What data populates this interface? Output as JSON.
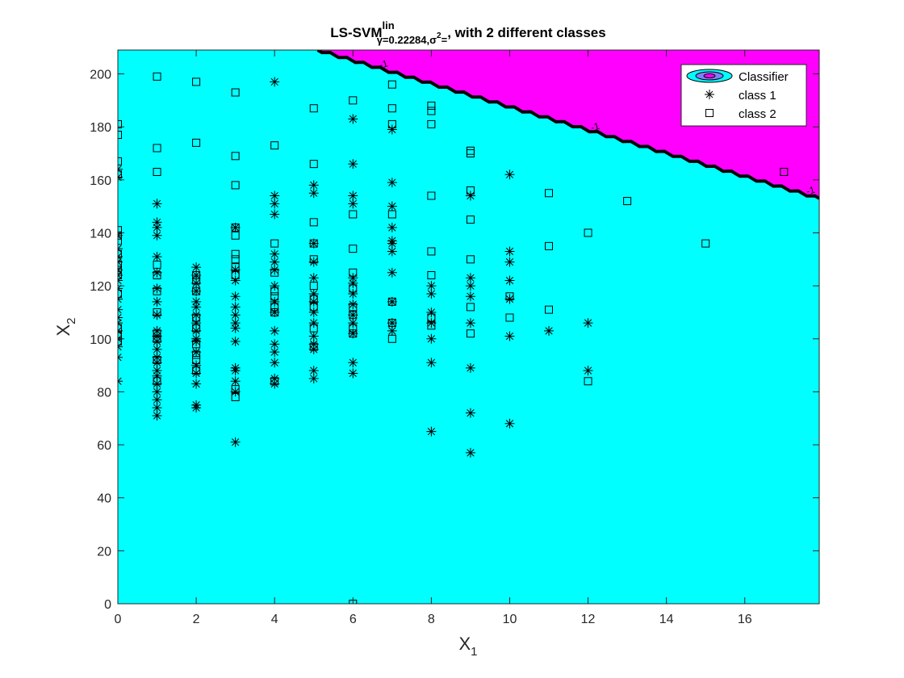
{
  "chart_data": {
    "type": "scatter",
    "title_main": "LS-SVM",
    "title_sup": "lin",
    "title_sub": "γ=0.22284,σ",
    "title_sub_sup": "2",
    "title_sub_tail": "=",
    "title_tail": ", with 2 different classes",
    "xlabel": "X",
    "xlabel_sub": "1",
    "ylabel": "X",
    "ylabel_sub": "2",
    "xlim": [
      0,
      17.9
    ],
    "ylim": [
      0,
      209
    ],
    "xticks": [
      0,
      2,
      4,
      6,
      8,
      10,
      12,
      14,
      16
    ],
    "yticks": [
      0,
      20,
      40,
      60,
      80,
      100,
      120,
      140,
      160,
      180,
      200
    ],
    "grid": false,
    "legend_placement": "top-right",
    "background_color": "#00ffff",
    "region_color": "#ff00ff",
    "boundary_color": "#000000",
    "boundary": {
      "x": [
        5.1,
        17.9
      ],
      "y": [
        209,
        153
      ],
      "label": "-1",
      "label_x": [
        6.8,
        12.2,
        17.7
      ]
    },
    "legend": [
      {
        "name": "Classifier",
        "marker": "contour"
      },
      {
        "name": "class 1",
        "marker": "star"
      },
      {
        "name": "class 2",
        "marker": "square"
      }
    ],
    "series": [
      {
        "name": "class 1",
        "marker": "star",
        "points": [
          [
            0,
            84
          ],
          [
            0,
            93
          ],
          [
            0,
            97
          ],
          [
            0,
            100
          ],
          [
            0,
            103
          ],
          [
            0,
            106
          ],
          [
            0,
            108
          ],
          [
            0,
            111
          ],
          [
            0,
            115
          ],
          [
            0,
            119
          ],
          [
            0,
            122
          ],
          [
            0,
            124
          ],
          [
            0,
            126
          ],
          [
            0,
            129
          ],
          [
            0,
            131
          ],
          [
            0,
            134
          ],
          [
            0,
            139
          ],
          [
            0,
            161
          ],
          [
            0,
            164
          ],
          [
            1,
            71
          ],
          [
            1,
            74
          ],
          [
            1,
            77
          ],
          [
            1,
            80
          ],
          [
            1,
            83
          ],
          [
            1,
            86
          ],
          [
            1,
            88
          ],
          [
            1,
            91
          ],
          [
            1,
            93
          ],
          [
            1,
            96
          ],
          [
            1,
            99
          ],
          [
            1,
            101
          ],
          [
            1,
            103
          ],
          [
            1,
            109
          ],
          [
            1,
            114
          ],
          [
            1,
            119
          ],
          [
            1,
            125
          ],
          [
            1,
            131
          ],
          [
            1,
            139
          ],
          [
            1,
            142
          ],
          [
            1,
            144
          ],
          [
            1,
            151
          ],
          [
            2,
            74
          ],
          [
            2,
            75
          ],
          [
            2,
            83
          ],
          [
            2,
            87
          ],
          [
            2,
            90
          ],
          [
            2,
            95
          ],
          [
            2,
            99
          ],
          [
            2,
            100
          ],
          [
            2,
            103
          ],
          [
            2,
            106
          ],
          [
            2,
            109
          ],
          [
            2,
            112
          ],
          [
            2,
            114
          ],
          [
            2,
            118
          ],
          [
            2,
            121
          ],
          [
            2,
            124
          ],
          [
            2,
            127
          ],
          [
            3,
            61
          ],
          [
            3,
            80
          ],
          [
            3,
            84
          ],
          [
            3,
            88
          ],
          [
            3,
            89
          ],
          [
            3,
            99
          ],
          [
            3,
            104
          ],
          [
            3,
            106
          ],
          [
            3,
            109
          ],
          [
            3,
            112
          ],
          [
            3,
            116
          ],
          [
            3,
            122
          ],
          [
            3,
            126
          ],
          [
            3,
            142
          ],
          [
            4,
            83
          ],
          [
            4,
            85
          ],
          [
            4,
            91
          ],
          [
            4,
            95
          ],
          [
            4,
            98
          ],
          [
            4,
            103
          ],
          [
            4,
            110
          ],
          [
            4,
            114
          ],
          [
            4,
            120
          ],
          [
            4,
            126
          ],
          [
            4,
            129
          ],
          [
            4,
            132
          ],
          [
            4,
            147
          ],
          [
            4,
            151
          ],
          [
            4,
            154
          ],
          [
            4,
            197
          ],
          [
            5,
            85
          ],
          [
            5,
            88
          ],
          [
            5,
            96
          ],
          [
            5,
            98
          ],
          [
            5,
            101
          ],
          [
            5,
            106
          ],
          [
            5,
            110
          ],
          [
            5,
            114
          ],
          [
            5,
            117
          ],
          [
            5,
            123
          ],
          [
            5,
            129
          ],
          [
            5,
            136
          ],
          [
            5,
            155
          ],
          [
            5,
            158
          ],
          [
            6,
            87
          ],
          [
            6,
            91
          ],
          [
            6,
            102
          ],
          [
            6,
            106
          ],
          [
            6,
            109
          ],
          [
            6,
            113
          ],
          [
            6,
            117
          ],
          [
            6,
            121
          ],
          [
            6,
            123
          ],
          [
            6,
            151
          ],
          [
            6,
            154
          ],
          [
            6,
            166
          ],
          [
            6,
            183
          ],
          [
            7,
            103
          ],
          [
            7,
            106
          ],
          [
            7,
            114
          ],
          [
            7,
            125
          ],
          [
            7,
            133
          ],
          [
            7,
            136
          ],
          [
            7,
            137
          ],
          [
            7,
            142
          ],
          [
            7,
            150
          ],
          [
            7,
            159
          ],
          [
            7,
            179
          ],
          [
            8,
            65
          ],
          [
            8,
            91
          ],
          [
            8,
            100
          ],
          [
            8,
            106
          ],
          [
            8,
            110
          ],
          [
            8,
            117
          ],
          [
            8,
            120
          ],
          [
            9,
            57
          ],
          [
            9,
            72
          ],
          [
            9,
            89
          ],
          [
            9,
            106
          ],
          [
            9,
            116
          ],
          [
            9,
            120
          ],
          [
            9,
            123
          ],
          [
            9,
            154
          ],
          [
            10,
            68
          ],
          [
            10,
            101
          ],
          [
            10,
            115
          ],
          [
            10,
            122
          ],
          [
            10,
            129
          ],
          [
            10,
            133
          ],
          [
            10,
            162
          ],
          [
            11,
            103
          ],
          [
            12,
            88
          ],
          [
            12,
            106
          ]
        ]
      },
      {
        "name": "class 2",
        "marker": "square",
        "points": [
          [
            0,
            99
          ],
          [
            0,
            101
          ],
          [
            0,
            104
          ],
          [
            0,
            117
          ],
          [
            0,
            124
          ],
          [
            0,
            126
          ],
          [
            0,
            128
          ],
          [
            0,
            132
          ],
          [
            0,
            137
          ],
          [
            0,
            139
          ],
          [
            0,
            141
          ],
          [
            0,
            162
          ],
          [
            0,
            167
          ],
          [
            0,
            177
          ],
          [
            0,
            181
          ],
          [
            1,
            84
          ],
          [
            1,
            92
          ],
          [
            1,
            100
          ],
          [
            1,
            102
          ],
          [
            1,
            110
          ],
          [
            1,
            118
          ],
          [
            1,
            124
          ],
          [
            1,
            128
          ],
          [
            1,
            163
          ],
          [
            1,
            172
          ],
          [
            1,
            199
          ],
          [
            2,
            88
          ],
          [
            2,
            92
          ],
          [
            2,
            94
          ],
          [
            2,
            98
          ],
          [
            2,
            104
          ],
          [
            2,
            108
          ],
          [
            2,
            118
          ],
          [
            2,
            122
          ],
          [
            2,
            124
          ],
          [
            2,
            174
          ],
          [
            2,
            197
          ],
          [
            3,
            78
          ],
          [
            3,
            81
          ],
          [
            3,
            124
          ],
          [
            3,
            127
          ],
          [
            3,
            130
          ],
          [
            3,
            132
          ],
          [
            3,
            139
          ],
          [
            3,
            142
          ],
          [
            3,
            158
          ],
          [
            3,
            169
          ],
          [
            3,
            193
          ],
          [
            4,
            84
          ],
          [
            4,
            110
          ],
          [
            4,
            112
          ],
          [
            4,
            116
          ],
          [
            4,
            118
          ],
          [
            4,
            125
          ],
          [
            4,
            136
          ],
          [
            4,
            173
          ],
          [
            5,
            97
          ],
          [
            5,
            104
          ],
          [
            5,
            112
          ],
          [
            5,
            115
          ],
          [
            5,
            120
          ],
          [
            5,
            130
          ],
          [
            5,
            136
          ],
          [
            5,
            144
          ],
          [
            5,
            166
          ],
          [
            5,
            187
          ],
          [
            6,
            0
          ],
          [
            6,
            102
          ],
          [
            6,
            104
          ],
          [
            6,
            109
          ],
          [
            6,
            112
          ],
          [
            6,
            119
          ],
          [
            6,
            125
          ],
          [
            6,
            134
          ],
          [
            6,
            147
          ],
          [
            6,
            190
          ],
          [
            7,
            100
          ],
          [
            7,
            106
          ],
          [
            7,
            114
          ],
          [
            7,
            147
          ],
          [
            7,
            181
          ],
          [
            7,
            187
          ],
          [
            7,
            196
          ],
          [
            8,
            105
          ],
          [
            8,
            108
          ],
          [
            8,
            124
          ],
          [
            8,
            133
          ],
          [
            8,
            154
          ],
          [
            8,
            181
          ],
          [
            8,
            186
          ],
          [
            8,
            188
          ],
          [
            9,
            102
          ],
          [
            9,
            112
          ],
          [
            9,
            130
          ],
          [
            9,
            145
          ],
          [
            9,
            156
          ],
          [
            9,
            170
          ],
          [
            9,
            171
          ],
          [
            10,
            108
          ],
          [
            10,
            116
          ],
          [
            11,
            111
          ],
          [
            11,
            135
          ],
          [
            11,
            155
          ],
          [
            12,
            84
          ],
          [
            12,
            140
          ],
          [
            13,
            152
          ],
          [
            15,
            136
          ],
          [
            17,
            163
          ]
        ]
      }
    ]
  }
}
